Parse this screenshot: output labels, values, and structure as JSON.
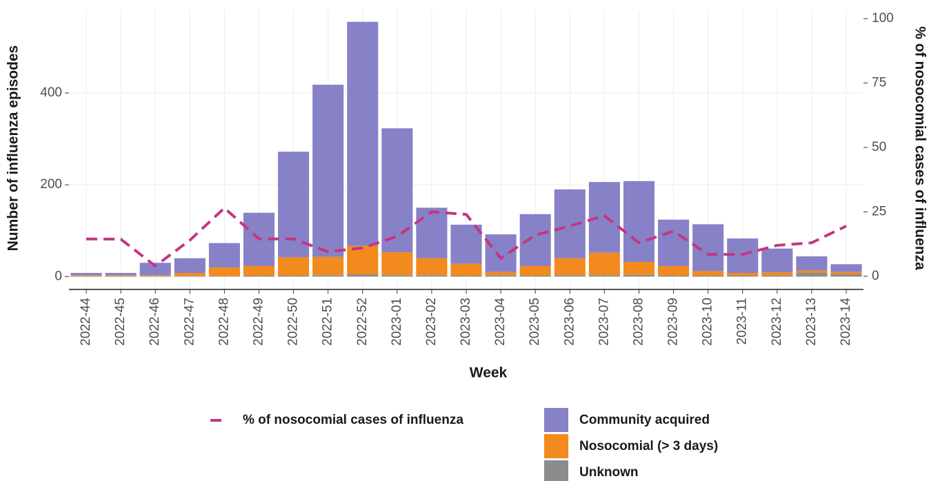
{
  "chart_data": {
    "type": "bar",
    "stacked": true,
    "x_label": "Week",
    "y_label": "Number of influenza episodes",
    "y2_label": "% of nosocomial cases of influenza",
    "categories": [
      "2022-44",
      "2022-45",
      "2022-46",
      "2022-47",
      "2022-48",
      "2022-49",
      "2022-50",
      "2022-51",
      "2022-52",
      "2023-01",
      "2023-02",
      "2023-03",
      "2023-04",
      "2023-05",
      "2023-06",
      "2023-07",
      "2023-08",
      "2023-09",
      "2023-10",
      "2023-11",
      "2023-12",
      "2023-13",
      "2023-14"
    ],
    "series": [
      {
        "name": "Community acquired",
        "color": "#8781c8",
        "values": [
          5,
          5,
          27,
          32,
          53,
          116,
          230,
          375,
          488,
          270,
          110,
          85,
          82,
          113,
          150,
          154,
          176,
          101,
          102,
          75,
          52,
          31,
          17
        ]
      },
      {
        "name": "Nosocomial (> 3 days)",
        "color": "#f28a1e",
        "values": [
          2,
          2,
          2,
          7,
          19,
          21,
          40,
          40,
          62,
          50,
          37,
          26,
          7,
          21,
          37,
          49,
          28,
          21,
          10,
          6,
          7,
          5,
          5
        ]
      },
      {
        "name": "Unknown",
        "color": "#8c8c8c",
        "values": [
          1,
          1,
          1,
          1,
          1,
          2,
          2,
          3,
          5,
          3,
          3,
          2,
          3,
          2,
          3,
          3,
          4,
          2,
          2,
          2,
          2,
          8,
          5
        ]
      },
      {
        "name": "% of nosocomial cases of influenza",
        "color": "#c43680",
        "type": "line",
        "dashed": true,
        "axis": "y2",
        "values": [
          14.5,
          14.4,
          4,
          14,
          26.5,
          14.5,
          14.5,
          9.5,
          11,
          15.5,
          25,
          24,
          7,
          16,
          19.5,
          23.5,
          13,
          17.5,
          8.5,
          8.5,
          12,
          13,
          19.5
        ]
      }
    ],
    "ylim": [
      -28,
      580
    ],
    "yticks": [
      0,
      200,
      400
    ],
    "y2lim": [
      -5.1,
      103.2
    ],
    "y2ticks": [
      0,
      25,
      50,
      75,
      100
    ],
    "grid": true
  }
}
